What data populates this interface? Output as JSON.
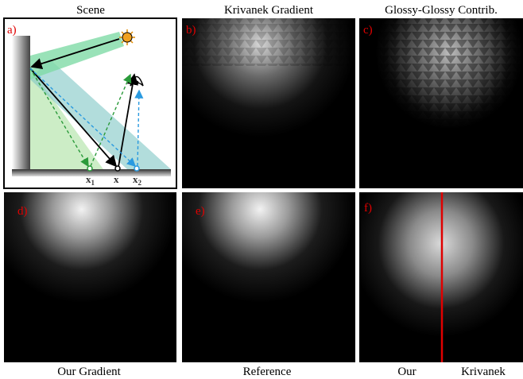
{
  "titles": [
    "Scene",
    "Krivanek Gradient",
    "Glossy-Glossy Contrib."
  ],
  "panel_labels": [
    "a)",
    "b)",
    "c)",
    "d)",
    "e)",
    "f)"
  ],
  "captions": [
    "Our Gradient",
    "Reference",
    "Our",
    "Krivanek"
  ],
  "scene": {
    "points": [
      {
        "base": "x",
        "sub": "1"
      },
      {
        "base": "x"
      },
      {
        "base": "x",
        "sub": "2"
      }
    ]
  }
}
